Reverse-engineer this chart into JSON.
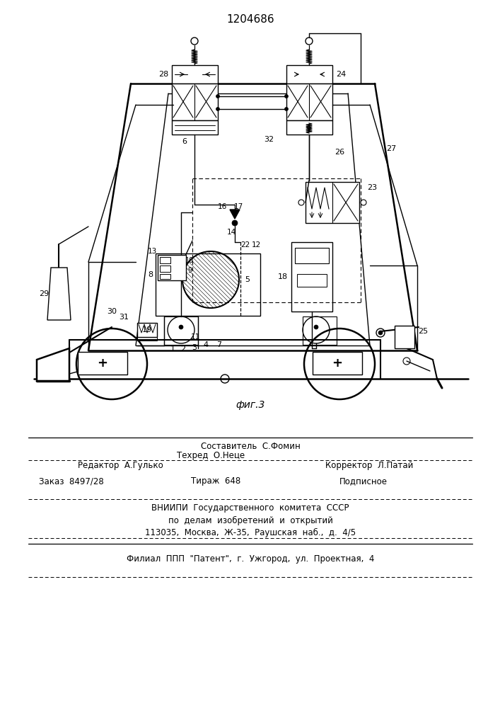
{
  "patent_number": "1204686",
  "fig_label": "фиг.3",
  "bg_color": "#ffffff",
  "lc": "#1a1a1a",
  "footer": {
    "line0": "Составитель  С.Фомин",
    "line1_left": "Редактор  А.Гулько",
    "line1_mid": "Техред  О.Неце",
    "line1_right": "Корректор  Л.Патай",
    "line2_left": "Заказ  8497/28",
    "line2_mid": "Тираж  648",
    "line2_right": "Подписное",
    "line3": "ВНИИПИ  Государственного  комитета  СССР",
    "line4": "по  делам  изобретений  и  открытий",
    "line5": "113035,  Москва,  Ж-35,  Раушская  наб.,  д.  4/5",
    "line6": "Филиал  ППП  \"Патент\",  г.  Ужгород,  ул.  Проектная,  4"
  }
}
